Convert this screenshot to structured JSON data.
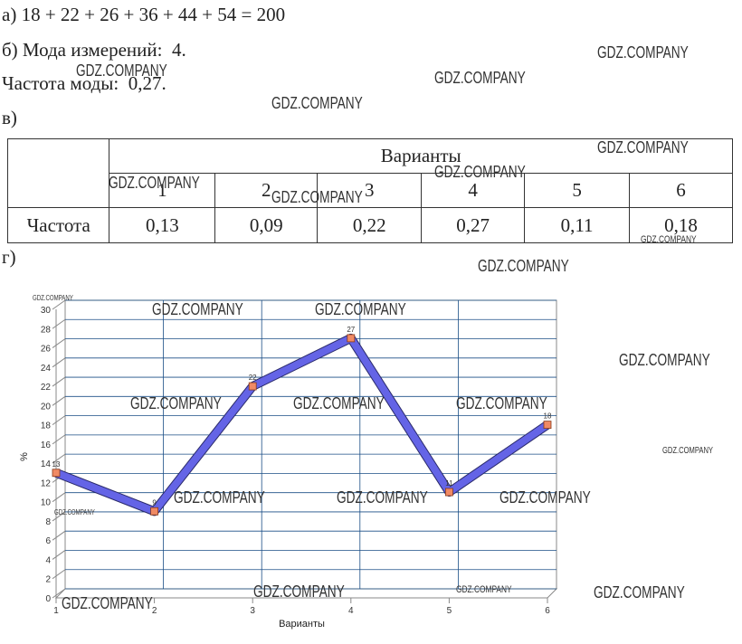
{
  "lines": {
    "a": "а) 18 + 22 + 26 + 36 + 44 + 54 = 200",
    "b": "б) Мода измерений:  4.",
    "c": "Частота моды:  0,27.",
    "v": "в)",
    "g": "г)"
  },
  "table": {
    "header": "Варианты",
    "columns": [
      "1",
      "2",
      "3",
      "4",
      "5",
      "6"
    ],
    "row_label": "Частота",
    "row": [
      "0,13",
      "0,09",
      "0,22",
      "0,27",
      "0,11",
      "0,18"
    ]
  },
  "chart": {
    "type": "line",
    "x": [
      1,
      2,
      3,
      4,
      5,
      6
    ],
    "values": [
      13,
      9,
      22,
      27,
      11,
      18
    ],
    "xlim": [
      1,
      6
    ],
    "ylim": [
      0,
      30
    ],
    "xticks": [
      1,
      2,
      3,
      4,
      5,
      6
    ],
    "yticks": [
      0,
      2,
      4,
      6,
      8,
      10,
      12,
      14,
      16,
      18,
      20,
      22,
      24,
      26,
      28,
      30
    ],
    "x_label": "Варианты",
    "y_label": "%",
    "color": "#6464e6",
    "marker_color": "#f08a64",
    "grid": true
  },
  "watermarks": [
    "GDZ.COMPANY",
    "GDZ.COMPANY",
    "GDZ.COMPANY",
    "GDZ.COMPANY",
    "GDZ.COMPANY",
    "GDZ.COMPANY",
    "GDZ.COMPANY",
    "GDZ.COMPANY",
    "GDZ.COMPANY",
    "GDZ.COMPANY",
    "GDZ.COMPANY",
    "GDZ.COMPANY",
    "GDZ.COMPANY",
    "GDZ.COMPANY",
    "GDZ.COMPANY",
    "GDZ.COMPANY",
    "GDZ.COMPANY",
    "GDZ.COMPANY",
    "GDZ.COMPANY",
    "GDZ.COMPANY",
    "GDZ.COMPANY",
    "GDZ.COMPANY",
    "GDZ.COMPANY",
    "GDZ.COMPANY",
    "GDZ.COMPANY",
    "GDZ.COMPANY"
  ]
}
